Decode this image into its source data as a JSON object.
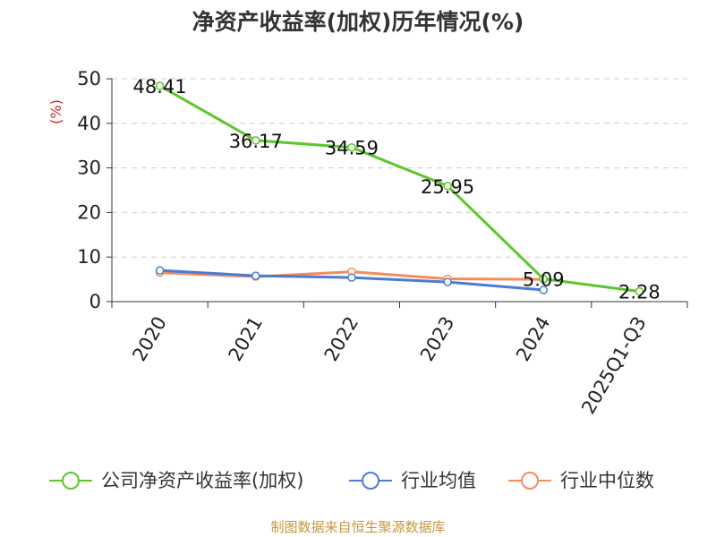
{
  "chart_data": {
    "type": "line",
    "title": "净资产收益率(加权)历年情况(%)",
    "ylabel": "(%)",
    "ylim": [
      0,
      50
    ],
    "yticks": [
      0,
      10,
      20,
      30,
      40,
      50
    ],
    "grid": true,
    "categories": [
      "2020",
      "2021",
      "2022",
      "2023",
      "2024",
      "2025Q1-Q3"
    ],
    "series": [
      {
        "name": "公司净资产收益率(加权)",
        "color": "#5bc72a",
        "values": [
          48.41,
          36.17,
          34.59,
          25.95,
          5.09,
          2.28
        ],
        "labels": [
          "48.41",
          "36.17",
          "34.59",
          "25.95",
          "5.09",
          "2.28"
        ]
      },
      {
        "name": "行业均值",
        "color": "#4a7bd6",
        "values": [
          7.0,
          5.8,
          5.4,
          4.4,
          2.6,
          null
        ]
      },
      {
        "name": "行业中位数",
        "color": "#f58c5a",
        "values": [
          6.5,
          5.6,
          6.7,
          5.1,
          5.0,
          null
        ]
      }
    ],
    "legend_position": "bottom"
  },
  "source_text": "制图数据来自恒生聚源数据库",
  "colors": {
    "source": "#c8963c",
    "unit": "#cc2222",
    "axis": "#333333",
    "grid": "#cccccc"
  }
}
